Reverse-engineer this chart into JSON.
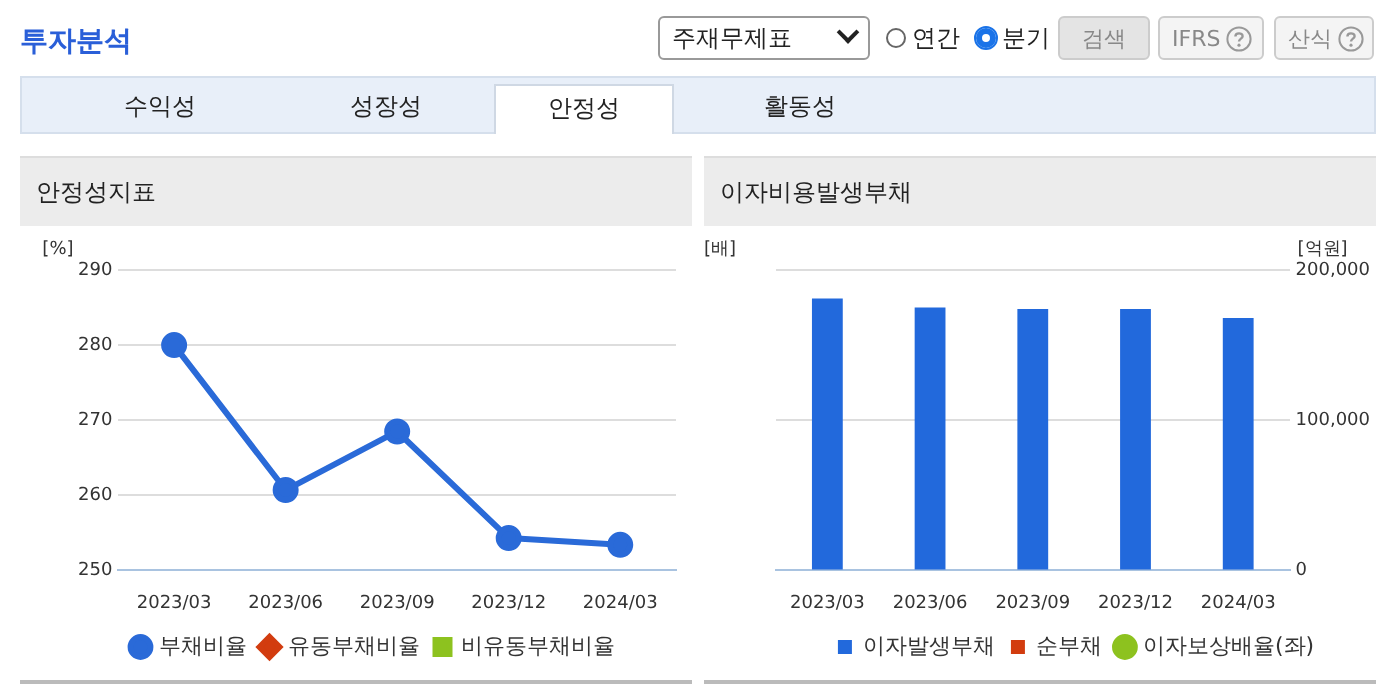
{
  "chart_data": [
    {
      "type": "other",
      "title": "투자분석",
      "annotations": [
        "주재무제표",
        "연간",
        "분기",
        "검색",
        "IFRS",
        "산식",
        "수익성",
        "성장성",
        "안정성",
        "활동성"
      ]
    },
    {
      "type": "line",
      "title": "안정성지표",
      "ylabel": "[%]",
      "categories": [
        "2023/03",
        "2023/06",
        "2023/09",
        "2023/12",
        "2024/03"
      ],
      "series": [
        {
          "name": "부채비율",
          "color": "#2a6ad8",
          "values": [
            280,
            260.7,
            268.5,
            254.3,
            253.4
          ],
          "marker": "circle"
        },
        {
          "name": "유동부채비율",
          "color": "#d23c0f",
          "values": [
            null,
            null,
            null,
            null,
            null
          ],
          "marker": "diamond"
        },
        {
          "name": "비유동부채비율",
          "color": "#8dc21f",
          "values": [
            null,
            null,
            null,
            null,
            null
          ],
          "marker": "square"
        }
      ],
      "ylim": [
        250,
        290
      ],
      "yticks": [
        250,
        260,
        270,
        280,
        290
      ],
      "grid": "y",
      "legend": "bottom"
    },
    {
      "type": "bar",
      "title": "이자비용발생부채",
      "ylabel": "[배]",
      "y2label": "[억원]",
      "categories": [
        "2023/03",
        "2023/06",
        "2023/09",
        "2023/12",
        "2024/03"
      ],
      "series": [
        {
          "name": "이자발생부채",
          "color": "#2269dc",
          "values": [
            181000,
            175000,
            174000,
            174000,
            168000
          ],
          "axis": "y2"
        },
        {
          "name": "순부채",
          "color": "#d23c0f",
          "values": [
            null,
            null,
            null,
            null,
            null
          ],
          "axis": "y2"
        },
        {
          "name": "이자보상배율(좌)",
          "type": "line",
          "color": "#8dc21f",
          "values": [
            null,
            null,
            null,
            null,
            null
          ],
          "marker": "circle"
        }
      ],
      "y2lim": [
        0,
        200000
      ],
      "y2ticks": [
        0,
        {
          "value": 100000,
          "label": "100,000"
        },
        {
          "value": 200000,
          "label": "200,000"
        }
      ],
      "grid": "y",
      "legend": "bottom"
    }
  ]
}
